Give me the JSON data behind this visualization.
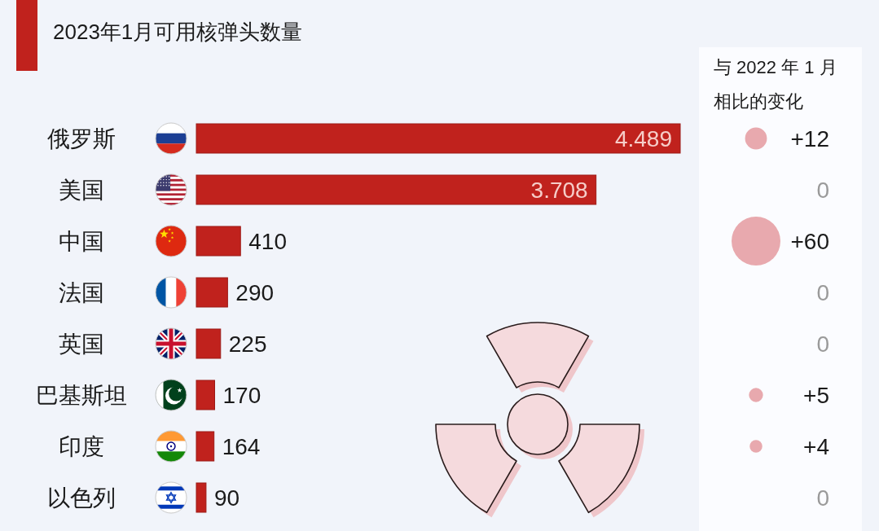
{
  "chart_data": [
    {
      "type": "bar",
      "orientation": "horizontal",
      "title": "2023年1月可用核弹头数量",
      "categories": [
        "俄罗斯",
        "美国",
        "中国",
        "法国",
        "英国",
        "巴基斯坦",
        "印度",
        "以色列"
      ],
      "values": [
        4489,
        3708,
        410,
        290,
        225,
        170,
        164,
        90
      ],
      "value_labels": [
        "4.489",
        "3.708",
        "410",
        "290",
        "225",
        "170",
        "164",
        "90"
      ],
      "color": "#c0221d"
    },
    {
      "type": "other",
      "title": "与 2022 年 1 月相比的变化",
      "values": [
        12,
        0,
        60,
        0,
        0,
        5,
        4,
        0
      ],
      "value_labels": [
        "+12",
        "0",
        "+60",
        "0",
        "0",
        "+5",
        "+4",
        "0"
      ],
      "color": "#e8a9ae"
    }
  ]
}
